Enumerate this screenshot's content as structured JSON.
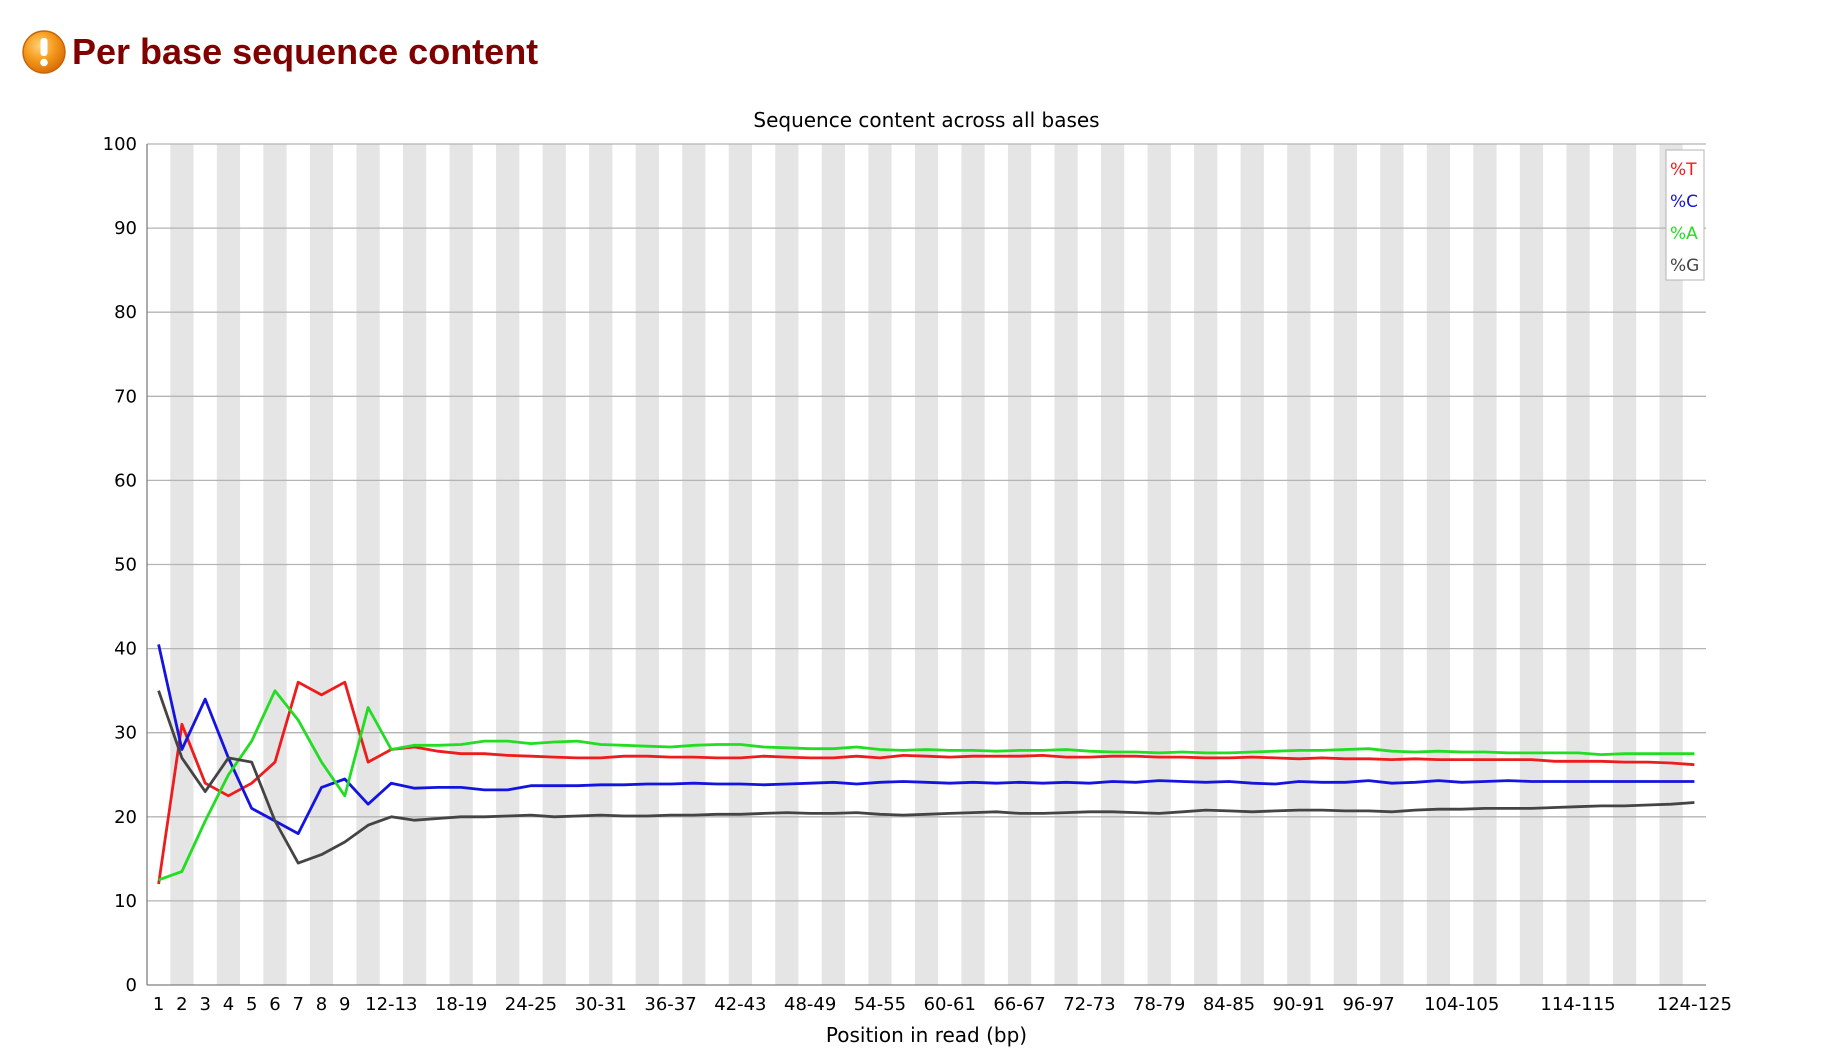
{
  "page": {
    "title": "Per base sequence content",
    "status_icon": "warning-icon"
  },
  "chart_data": {
    "type": "line",
    "title": "Sequence content across all bases",
    "xlabel": "Position in read (bp)",
    "ylabel": "",
    "ylim": [
      0,
      100
    ],
    "yticks": [
      0,
      10,
      20,
      30,
      40,
      50,
      60,
      70,
      80,
      90,
      100
    ],
    "grid": true,
    "legend_position": "top-right",
    "x_tick_labels": [
      "1",
      "2",
      "3",
      "4",
      "5",
      "6",
      "7",
      "8",
      "9",
      "12-13",
      "18-19",
      "24-25",
      "30-31",
      "36-37",
      "42-43",
      "48-49",
      "54-55",
      "60-61",
      "66-67",
      "72-73",
      "78-79",
      "84-85",
      "90-91",
      "96-97",
      "104-105",
      "114-115",
      "124-125"
    ],
    "categories": [
      "1",
      "2",
      "3",
      "4",
      "5",
      "6",
      "7",
      "8",
      "9",
      "10-11",
      "12-13",
      "14-15",
      "16-17",
      "18-19",
      "20-21",
      "22-23",
      "24-25",
      "26-27",
      "28-29",
      "30-31",
      "32-33",
      "34-35",
      "36-37",
      "38-39",
      "40-41",
      "42-43",
      "44-45",
      "46-47",
      "48-49",
      "50-51",
      "52-53",
      "54-55",
      "56-57",
      "58-59",
      "60-61",
      "62-63",
      "64-65",
      "66-67",
      "68-69",
      "70-71",
      "72-73",
      "74-75",
      "76-77",
      "78-79",
      "80-81",
      "82-83",
      "84-85",
      "86-87",
      "88-89",
      "90-91",
      "92-93",
      "94-95",
      "96-97",
      "98-99",
      "100-101",
      "102-103",
      "104-105",
      "106-107",
      "108-109",
      "110-111",
      "112-113",
      "114-115",
      "116-117",
      "118-119",
      "120-121",
      "122-123",
      "124-125"
    ],
    "series": [
      {
        "name": "%T",
        "color": "#ee1c1c",
        "values": [
          12,
          31,
          24,
          22.5,
          24,
          26.5,
          36,
          34.5,
          36,
          26.5,
          28,
          28.3,
          27.8,
          27.5,
          27.5,
          27.3,
          27.2,
          27.1,
          27.0,
          27.0,
          27.2,
          27.2,
          27.1,
          27.1,
          27.0,
          27.0,
          27.2,
          27.1,
          27.0,
          27.0,
          27.2,
          27.0,
          27.3,
          27.2,
          27.1,
          27.2,
          27.2,
          27.2,
          27.3,
          27.1,
          27.1,
          27.2,
          27.2,
          27.1,
          27.1,
          27.0,
          27.0,
          27.1,
          27.0,
          26.9,
          27.0,
          26.9,
          26.9,
          26.8,
          26.9,
          26.8,
          26.8,
          26.8,
          26.8,
          26.8,
          26.6,
          26.6,
          26.6,
          26.5,
          26.5,
          26.4,
          26.2
        ]
      },
      {
        "name": "%C",
        "color": "#1414e0",
        "values": [
          40.5,
          28,
          34,
          27,
          21,
          19.5,
          18,
          23.5,
          24.5,
          21.5,
          24,
          23.4,
          23.5,
          23.5,
          23.2,
          23.2,
          23.7,
          23.7,
          23.7,
          23.8,
          23.8,
          23.9,
          23.9,
          24.0,
          23.9,
          23.9,
          23.8,
          23.9,
          24.0,
          24.1,
          23.9,
          24.1,
          24.2,
          24.1,
          24.0,
          24.1,
          24.0,
          24.1,
          24.0,
          24.1,
          24.0,
          24.2,
          24.1,
          24.3,
          24.2,
          24.1,
          24.2,
          24.0,
          23.9,
          24.2,
          24.1,
          24.1,
          24.3,
          24.0,
          24.1,
          24.3,
          24.1,
          24.2,
          24.3,
          24.2,
          24.2,
          24.2,
          24.2,
          24.2,
          24.2,
          24.2,
          24.2
        ]
      },
      {
        "name": "%A",
        "color": "#22dd22",
        "values": [
          12.5,
          13.5,
          19.5,
          25,
          29,
          35,
          31.5,
          26.5,
          22.5,
          33,
          28,
          28.5,
          28.5,
          28.6,
          29.0,
          29.0,
          28.7,
          28.9,
          29.0,
          28.6,
          28.5,
          28.4,
          28.3,
          28.5,
          28.6,
          28.6,
          28.3,
          28.2,
          28.1,
          28.1,
          28.3,
          28.0,
          27.9,
          28.0,
          27.9,
          27.9,
          27.8,
          27.9,
          27.9,
          28.0,
          27.8,
          27.7,
          27.7,
          27.6,
          27.7,
          27.6,
          27.6,
          27.7,
          27.8,
          27.9,
          27.9,
          28.0,
          28.1,
          27.8,
          27.7,
          27.8,
          27.7,
          27.7,
          27.6,
          27.6,
          27.6,
          27.6,
          27.4,
          27.5,
          27.5,
          27.5,
          27.5
        ]
      },
      {
        "name": "%G",
        "color": "#444444",
        "values": [
          35,
          27,
          23,
          27,
          26.5,
          19.5,
          14.5,
          15.5,
          17,
          19,
          20,
          19.6,
          19.8,
          20.0,
          20.0,
          20.1,
          20.2,
          20.0,
          20.1,
          20.2,
          20.1,
          20.1,
          20.2,
          20.2,
          20.3,
          20.3,
          20.4,
          20.5,
          20.4,
          20.4,
          20.5,
          20.3,
          20.2,
          20.3,
          20.4,
          20.5,
          20.6,
          20.4,
          20.4,
          20.5,
          20.6,
          20.6,
          20.5,
          20.4,
          20.6,
          20.8,
          20.7,
          20.6,
          20.7,
          20.8,
          20.8,
          20.7,
          20.7,
          20.6,
          20.8,
          20.9,
          20.9,
          21.0,
          21.0,
          21.0,
          21.1,
          21.2,
          21.3,
          21.3,
          21.4,
          21.5,
          21.7
        ]
      }
    ]
  }
}
